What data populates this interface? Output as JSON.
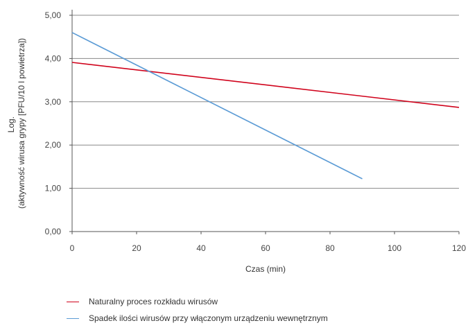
{
  "chart_data": {
    "type": "line",
    "title": "",
    "xlabel": "Czas (min)",
    "ylabel_lines": [
      "Log.",
      "(aktywność wirusa grypy [PFU/10 l powietrza])"
    ],
    "x_ticks": [
      0,
      20,
      40,
      60,
      80,
      100,
      120
    ],
    "y_ticks": [
      "0,00",
      "1,00",
      "2,00",
      "3,00",
      "4,00",
      "5,00"
    ],
    "xlim": [
      0,
      120
    ],
    "ylim": [
      0,
      5
    ],
    "grid": "horizontal",
    "legend_position": "bottom-left",
    "series": [
      {
        "name": "Naturalny proces rozkładu wirusów",
        "color": "#d0021b",
        "x": [
          0,
          120
        ],
        "y": [
          3.91,
          2.87
        ]
      },
      {
        "name": "Spadek ilości wirusów przy włączonym urządzeniu wewnętrznym",
        "color": "#5b9bd5",
        "x": [
          0,
          90
        ],
        "y": [
          4.6,
          1.22
        ]
      }
    ]
  }
}
